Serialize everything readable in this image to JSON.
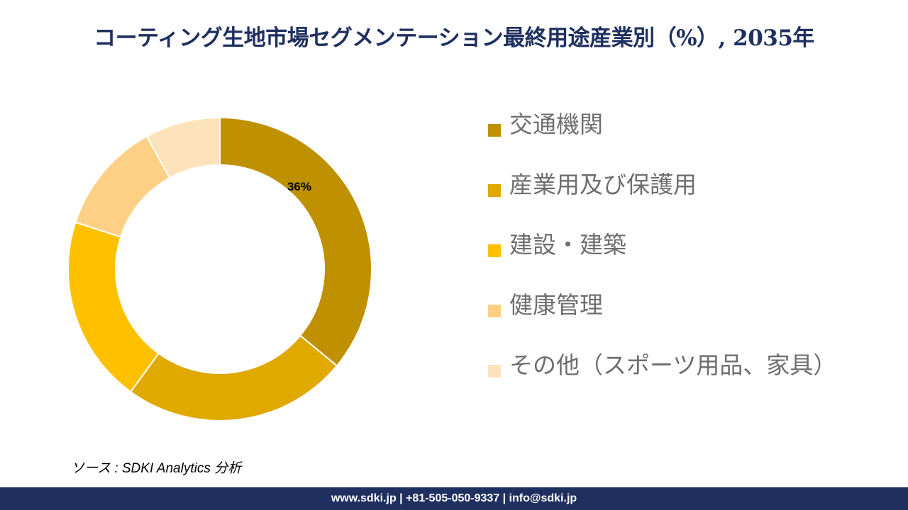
{
  "title": "コーティング生地市場セグメンテーション最終用途産業別（%）, 2035年",
  "source": "ソース : SDKI Analytics 分析",
  "footer": "www.sdki.jp | +81-505-050-9337 | info@sdki.jp",
  "chart_data": {
    "type": "pie",
    "donut": true,
    "labels": [
      "交通機関",
      "産業用及び保護用",
      "建設・建築",
      "健康管理",
      "その他（スポーツ用品、家具）"
    ],
    "values": [
      36,
      24,
      20,
      12,
      8
    ],
    "data_labels": [
      "36%",
      "",
      "",
      "",
      ""
    ],
    "colors": [
      "#bf9000",
      "#dfa900",
      "#ffc000",
      "#fdd085",
      "#fde3bb"
    ],
    "legend_position": "right"
  }
}
